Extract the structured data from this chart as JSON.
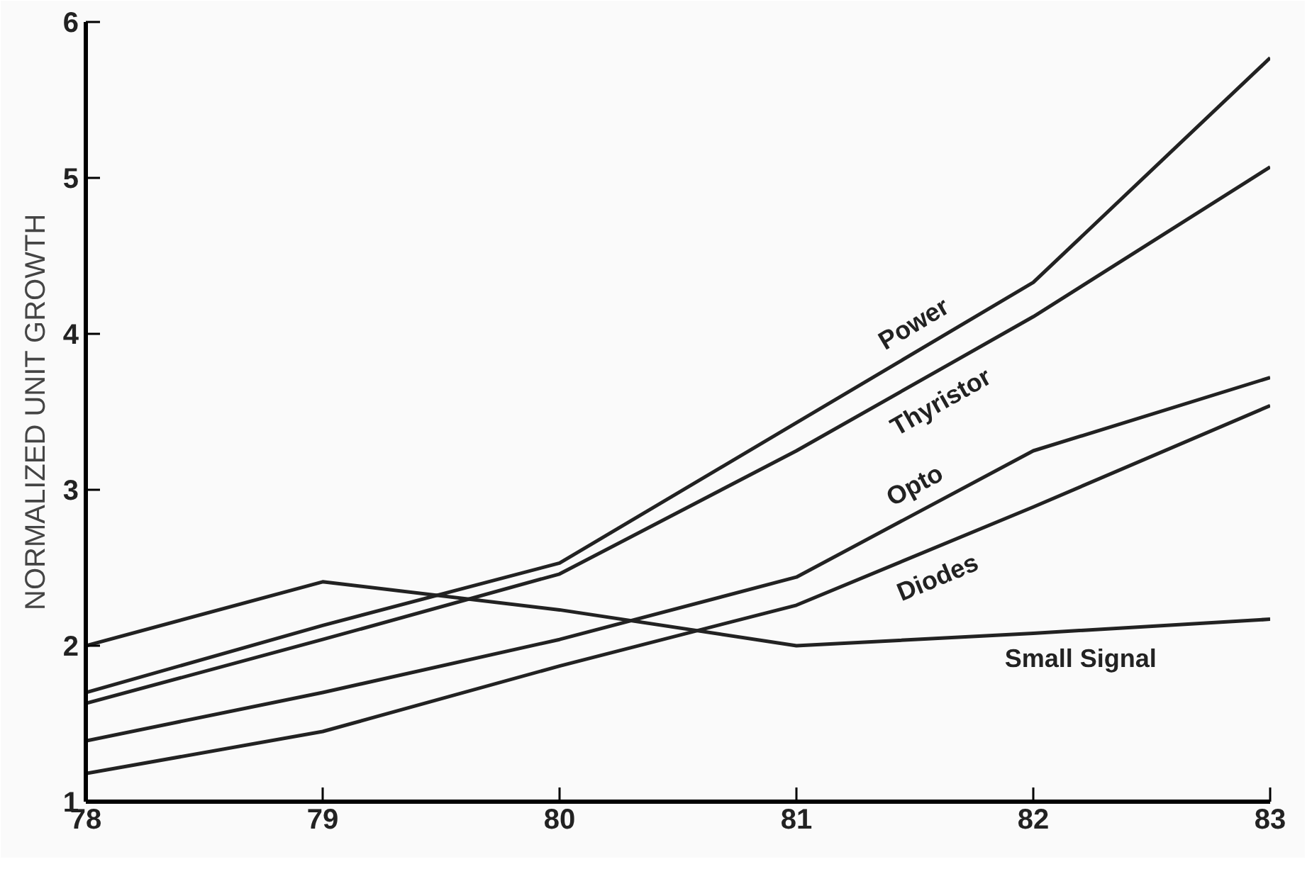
{
  "chart_data": {
    "type": "line",
    "ylabel": "NORMALIZED UNIT GROWTH",
    "x": [
      78,
      79,
      80,
      81,
      82,
      83
    ],
    "series": [
      {
        "name": "Power",
        "color": "#222222",
        "values": [
          1.7,
          2.13,
          2.53,
          3.43,
          4.33,
          5.77
        ]
      },
      {
        "name": "Thyristor",
        "color": "#222222",
        "values": [
          1.63,
          2.04,
          2.46,
          3.25,
          4.11,
          5.07
        ]
      },
      {
        "name": "Opto",
        "color": "#222222",
        "values": [
          1.39,
          1.7,
          2.04,
          2.44,
          3.25,
          3.72
        ]
      },
      {
        "name": "Diodes",
        "color": "#222222",
        "values": [
          1.18,
          1.45,
          1.87,
          2.26,
          2.89,
          3.54
        ]
      },
      {
        "name": "Small Signal",
        "color": "#222222",
        "values": [
          2.0,
          2.41,
          2.23,
          2.0,
          2.08,
          2.17
        ]
      }
    ],
    "xlim": [
      78,
      83
    ],
    "ylim": [
      1,
      6
    ],
    "xticks": [
      78,
      79,
      80,
      81,
      82,
      83
    ],
    "yticks": [
      1,
      2,
      3,
      4,
      5,
      6
    ],
    "grid": false,
    "legend": false,
    "marker": "none",
    "line_style": "solid"
  }
}
